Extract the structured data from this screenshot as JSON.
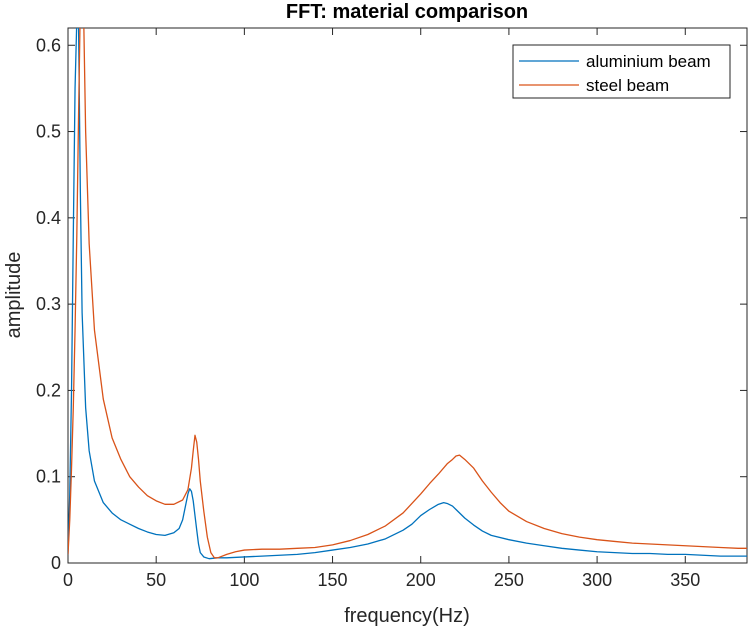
{
  "chart_data": {
    "type": "line",
    "title": "FFT: material comparison",
    "xlabel": "frequency(Hz)",
    "ylabel": "amplitude",
    "xlim": [
      0,
      385
    ],
    "ylim": [
      0,
      0.62
    ],
    "xticks": [
      0,
      50,
      100,
      150,
      200,
      250,
      300,
      350
    ],
    "yticks": [
      0,
      0.1,
      0.2,
      0.3,
      0.4,
      0.5,
      0.6
    ],
    "xtick_labels": [
      "0",
      "50",
      "100",
      "150",
      "200",
      "250",
      "300",
      "350"
    ],
    "ytick_labels": [
      "0",
      "0.1",
      "0.2",
      "0.3",
      "0.4",
      "0.5",
      "0.6"
    ],
    "grid": false,
    "legend_position": "top-right",
    "series": [
      {
        "name": "aluminium beam",
        "color": "#0072BD",
        "x": [
          0,
          1,
          2,
          3,
          4,
          5,
          6,
          7,
          8,
          10,
          12,
          15,
          20,
          25,
          30,
          35,
          40,
          45,
          50,
          55,
          60,
          63,
          65,
          67,
          68,
          69,
          70,
          71,
          72,
          73,
          74,
          75,
          77,
          80,
          85,
          90,
          100,
          110,
          120,
          130,
          140,
          150,
          160,
          170,
          180,
          190,
          195,
          200,
          205,
          210,
          213,
          215,
          218,
          220,
          225,
          230,
          235,
          240,
          250,
          260,
          270,
          280,
          290,
          300,
          310,
          320,
          330,
          340,
          350,
          360,
          370,
          380,
          385
        ],
        "y": [
          0.01,
          0.08,
          0.2,
          0.38,
          0.55,
          0.63,
          0.62,
          0.43,
          0.29,
          0.18,
          0.13,
          0.095,
          0.07,
          0.058,
          0.05,
          0.045,
          0.04,
          0.036,
          0.033,
          0.032,
          0.035,
          0.04,
          0.05,
          0.07,
          0.08,
          0.086,
          0.083,
          0.072,
          0.055,
          0.038,
          0.022,
          0.012,
          0.007,
          0.005,
          0.006,
          0.006,
          0.007,
          0.008,
          0.009,
          0.01,
          0.012,
          0.015,
          0.018,
          0.022,
          0.028,
          0.038,
          0.045,
          0.055,
          0.062,
          0.068,
          0.07,
          0.069,
          0.066,
          0.062,
          0.052,
          0.044,
          0.037,
          0.032,
          0.027,
          0.023,
          0.02,
          0.017,
          0.015,
          0.013,
          0.012,
          0.011,
          0.011,
          0.01,
          0.01,
          0.009,
          0.008,
          0.008,
          0.008
        ]
      },
      {
        "name": "steel beam",
        "color": "#D95319",
        "x": [
          0,
          1,
          2,
          3,
          4,
          5,
          6,
          7,
          8,
          9,
          10,
          12,
          15,
          20,
          25,
          30,
          35,
          40,
          45,
          50,
          55,
          60,
          65,
          68,
          70,
          71,
          72,
          73,
          74,
          75,
          77,
          79,
          81,
          83,
          85,
          90,
          95,
          100,
          110,
          120,
          130,
          140,
          150,
          160,
          170,
          180,
          190,
          200,
          205,
          210,
          215,
          218,
          220,
          222,
          225,
          230,
          235,
          240,
          245,
          250,
          260,
          270,
          280,
          290,
          300,
          310,
          320,
          330,
          340,
          350,
          360,
          370,
          380,
          385
        ],
        "y": [
          0.01,
          0.05,
          0.11,
          0.18,
          0.27,
          0.38,
          0.52,
          0.65,
          0.7,
          0.62,
          0.5,
          0.37,
          0.27,
          0.19,
          0.145,
          0.12,
          0.1,
          0.088,
          0.078,
          0.072,
          0.068,
          0.068,
          0.073,
          0.085,
          0.11,
          0.13,
          0.148,
          0.14,
          0.12,
          0.095,
          0.06,
          0.03,
          0.012,
          0.006,
          0.006,
          0.01,
          0.013,
          0.015,
          0.016,
          0.016,
          0.017,
          0.018,
          0.021,
          0.026,
          0.033,
          0.043,
          0.058,
          0.08,
          0.092,
          0.103,
          0.115,
          0.12,
          0.124,
          0.125,
          0.12,
          0.11,
          0.095,
          0.082,
          0.07,
          0.06,
          0.048,
          0.04,
          0.034,
          0.03,
          0.027,
          0.025,
          0.023,
          0.022,
          0.021,
          0.02,
          0.019,
          0.018,
          0.017,
          0.017
        ]
      }
    ]
  }
}
